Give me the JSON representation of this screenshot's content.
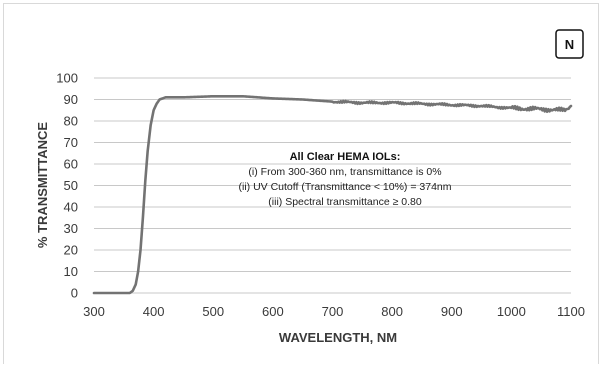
{
  "chart_data": {
    "type": "line",
    "panel_label": "N",
    "xlabel": "WAVELENGTH, NM",
    "ylabel": "% TRANSMITTANCE",
    "xlim": [
      300,
      1100
    ],
    "ylim": [
      0,
      100
    ],
    "x_ticks": [
      300,
      400,
      500,
      600,
      700,
      800,
      900,
      1000,
      1100
    ],
    "y_ticks": [
      0,
      10,
      20,
      30,
      40,
      50,
      60,
      70,
      80,
      90,
      100
    ],
    "grid": "horizontal",
    "annotation": {
      "heading": "All Clear HEMA IOLs:",
      "lines": [
        "(i) From 300-360 nm, transmittance is 0%",
        "(ii) UV Cutoff (Transmittance < 10%) = 374nm",
        "(iii) Spectral transmittance ≥ 0.80"
      ]
    },
    "series": [
      {
        "color": "#737373",
        "x": [
          300,
          320,
          340,
          360,
          365,
          370,
          374,
          378,
          382,
          386,
          390,
          395,
          400,
          405,
          410,
          415,
          420,
          430,
          450,
          500,
          550,
          600,
          650,
          700,
          750,
          800,
          850,
          900,
          950,
          1000,
          1050,
          1090,
          1100
        ],
        "y": [
          0,
          0,
          0,
          0,
          1,
          4,
          10,
          20,
          35,
          52,
          66,
          78,
          85,
          88,
          90,
          90.5,
          91,
          91,
          91,
          91.5,
          91.5,
          90.5,
          90,
          89,
          88.5,
          88.5,
          88,
          87.5,
          87,
          86,
          85.5,
          85,
          87
        ]
      }
    ]
  }
}
